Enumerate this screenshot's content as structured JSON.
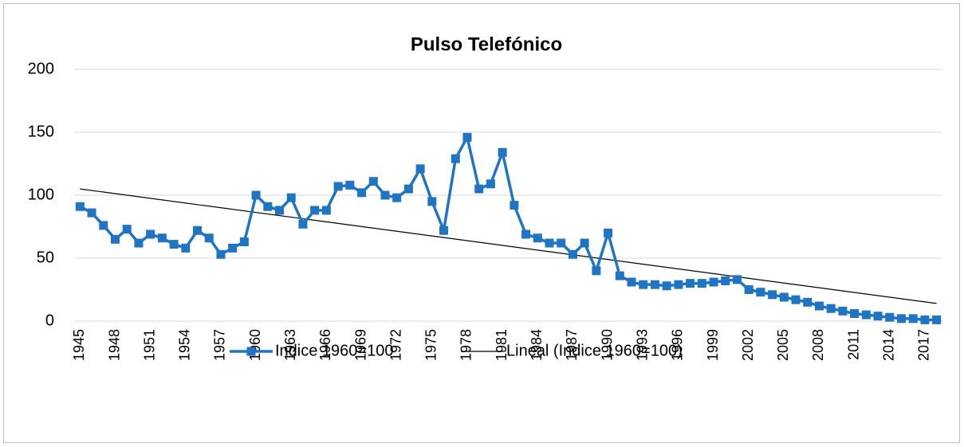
{
  "chart_data": {
    "type": "line",
    "title": "Pulso Telefónico",
    "categories": [
      "1945",
      null,
      null,
      "1948",
      null,
      null,
      "1951",
      null,
      null,
      "1954",
      null,
      null,
      "1957",
      null,
      null,
      "1960",
      null,
      null,
      "1963",
      null,
      null,
      "1966",
      null,
      null,
      "1969",
      null,
      null,
      "1972",
      null,
      null,
      "1975",
      null,
      null,
      "1978",
      null,
      null,
      "1981",
      null,
      null,
      "1984",
      null,
      null,
      "1987",
      null,
      null,
      "1990",
      null,
      null,
      "1993",
      null,
      null,
      "1996",
      null,
      null,
      "1999",
      null,
      null,
      "2002",
      null,
      null,
      "2005",
      null,
      null,
      "2008",
      null,
      null,
      "2011",
      null,
      null,
      "2014",
      null,
      null,
      "2017",
      null
    ],
    "series": [
      {
        "name": "Indice 1960=100",
        "color": "#1f74c4",
        "values": [
          91,
          86,
          76,
          65,
          73,
          62,
          69,
          66,
          61,
          58,
          72,
          66,
          53,
          58,
          63,
          100,
          91,
          88,
          98,
          77,
          88,
          88,
          107,
          108,
          102,
          111,
          100,
          98,
          105,
          121,
          95,
          72,
          129,
          146,
          105,
          109,
          134,
          92,
          69,
          66,
          62,
          62,
          53,
          62,
          40,
          70,
          36,
          31,
          29,
          29,
          28,
          29,
          30,
          30,
          31,
          32,
          33,
          25,
          23,
          21,
          19,
          17,
          15,
          12,
          10,
          8,
          6,
          5,
          4,
          3,
          2,
          2,
          1,
          1
        ]
      }
    ],
    "trendline": {
      "name": "Lineal (Indice 1960=100)",
      "color": "#000000",
      "values": [
        105,
        14
      ]
    },
    "ylim": [
      0,
      200
    ],
    "yticks": [
      0,
      50,
      100,
      150,
      200
    ],
    "grid": true
  }
}
